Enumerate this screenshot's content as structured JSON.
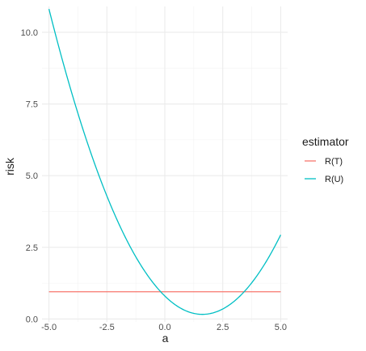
{
  "chart_data": {
    "type": "line",
    "xlabel": "a",
    "ylabel": "risk",
    "xlim": [
      -5.3,
      5.3
    ],
    "ylim": [
      -0.1,
      10.9
    ],
    "x_ticks": [
      -5.0,
      -2.5,
      0.0,
      2.5,
      5.0
    ],
    "x_tick_labels": [
      "-5.0",
      "-2.5",
      "0.0",
      "2.5",
      "5.0"
    ],
    "y_ticks": [
      0.0,
      2.5,
      5.0,
      7.5,
      10.0
    ],
    "y_tick_labels": [
      "0.0",
      "2.5",
      "5.0",
      "7.5",
      "10.0"
    ],
    "grid": true,
    "legend": {
      "title": "estimator",
      "position": "right",
      "entries": [
        {
          "label": "R(T)",
          "color": "#F8766D"
        },
        {
          "label": "R(U)",
          "color": "#00BFC4"
        }
      ]
    },
    "series": [
      {
        "name": "R(T)",
        "color": "#F8766D",
        "x": [
          -5.0,
          5.0
        ],
        "y": [
          0.95,
          0.95
        ]
      },
      {
        "name": "R(U)",
        "color": "#00BFC4",
        "x": [
          -5.0,
          -4.0,
          -3.0,
          -2.0,
          -1.0,
          0.0,
          1.0,
          1.5,
          2.0,
          3.0,
          4.0,
          5.0
        ],
        "y": [
          10.5,
          7.9,
          5.6,
          3.65,
          2.0,
          0.72,
          -0.02,
          -0.07,
          0.0,
          0.73,
          1.72,
          2.97
        ]
      }
    ]
  }
}
